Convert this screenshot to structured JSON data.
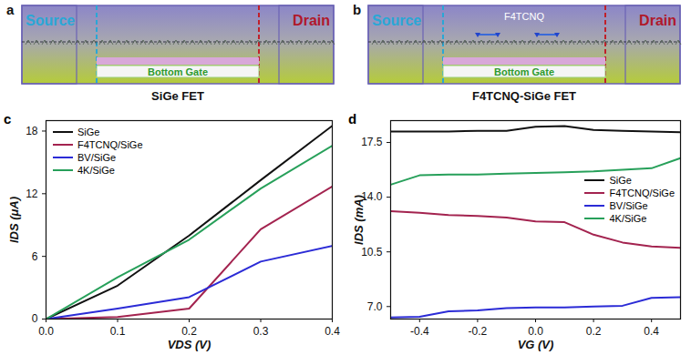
{
  "diagrams": [
    {
      "panel": "a",
      "source": "Source",
      "drain": "Drain",
      "gate": "Bottom Gate",
      "caption": "SiGe FET"
    },
    {
      "panel": "b",
      "source": "Source",
      "drain": "Drain",
      "gate": "Bottom Gate",
      "molecule": "F4TCNQ",
      "caption": "F4TCNQ-SiGe FET"
    }
  ],
  "chart_data": [
    {
      "panel": "c",
      "type": "line",
      "xlabel": "VDS (V)",
      "ylabel": "IDS (μA)",
      "legend": "upper left",
      "x": [
        0,
        0.1,
        0.2,
        0.3,
        0.4
      ],
      "xlim": [
        0,
        0.4
      ],
      "xticks": [
        {
          "value": 0,
          "label": "0.0"
        },
        {
          "value": 0.1,
          "label": "0.1"
        },
        {
          "value": 0.2,
          "label": "0.2"
        },
        {
          "value": 0.3,
          "label": "0.3"
        },
        {
          "value": 0.4,
          "label": "0.4"
        }
      ],
      "ylim": [
        0,
        19
      ],
      "yticks": [
        0,
        6,
        12,
        18
      ],
      "series": [
        {
          "name": "SiGe",
          "color": "#111111",
          "values": [
            0,
            3.2,
            8.0,
            13.3,
            18.5
          ]
        },
        {
          "name": "F4TCNQ/SiGe",
          "color": "#a3234f",
          "values": [
            0,
            0.2,
            1.0,
            8.6,
            12.7
          ]
        },
        {
          "name": "BV/SiGe",
          "color": "#2b2bd6",
          "values": [
            0,
            1.0,
            2.1,
            5.5,
            7.0
          ]
        },
        {
          "name": "4K/SiGe",
          "color": "#27a05a",
          "values": [
            0,
            4.0,
            7.6,
            12.5,
            16.6
          ]
        }
      ]
    },
    {
      "panel": "d",
      "type": "line",
      "xlabel": "VG (V)",
      "ylabel": "IDS (mA)",
      "legend": "center right",
      "x": [
        -0.5,
        -0.4,
        -0.3,
        -0.2,
        -0.1,
        0,
        0.1,
        0.2,
        0.3,
        0.4,
        0.5
      ],
      "xlim": [
        -0.5,
        0.5
      ],
      "xticks": [
        {
          "value": -0.4,
          "label": "-0.4"
        },
        {
          "value": -0.2,
          "label": "-0.2"
        },
        {
          "value": 0,
          "label": "0.0"
        },
        {
          "value": 0.2,
          "label": "0.2"
        },
        {
          "value": 0.4,
          "label": "0.4"
        }
      ],
      "ylim": [
        6.2,
        18.9
      ],
      "yticks": [
        {
          "value": 7,
          "label": "7.0"
        },
        {
          "value": 10.5,
          "label": "10.5"
        },
        {
          "value": 14,
          "label": "14.0"
        },
        {
          "value": 17.5,
          "label": "17.5"
        }
      ],
      "series": [
        {
          "name": "SiGe",
          "color": "#111111",
          "values": [
            18.2,
            18.2,
            18.2,
            18.25,
            18.25,
            18.5,
            18.55,
            18.3,
            18.25,
            18.2,
            18.15
          ]
        },
        {
          "name": "F4TCNQ/SiGe",
          "color": "#a3234f",
          "values": [
            13.1,
            13.0,
            12.85,
            12.8,
            12.7,
            12.45,
            12.4,
            11.6,
            11.1,
            10.85,
            10.75
          ]
        },
        {
          "name": "BV/SiGe",
          "color": "#2b2bd6",
          "values": [
            6.3,
            6.35,
            6.7,
            6.75,
            6.9,
            6.95,
            6.95,
            7.0,
            7.05,
            7.55,
            7.6
          ]
        },
        {
          "name": "4K/SiGe",
          "color": "#27a05a",
          "values": [
            14.8,
            15.4,
            15.45,
            15.45,
            15.5,
            15.55,
            15.6,
            15.65,
            15.75,
            15.85,
            16.5
          ]
        }
      ]
    }
  ]
}
